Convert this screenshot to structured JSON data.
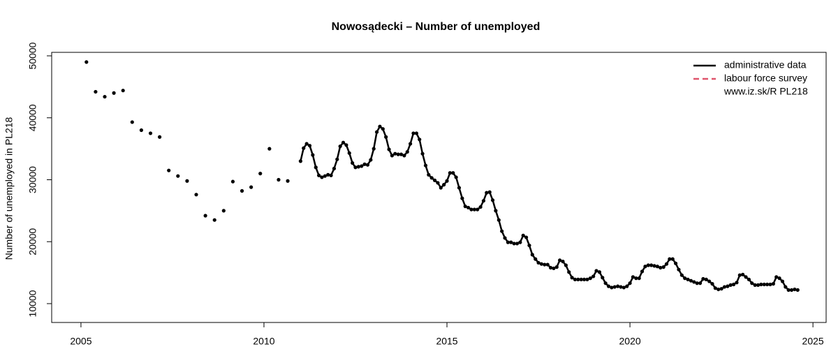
{
  "chart_data": {
    "type": "line",
    "title": "Nowosądecki – Number of unemployed",
    "y_label": "Number of unemployed in PL218",
    "annotation": "www.iz.sk/R PL218",
    "xlim": [
      2004.2,
      2025.36
    ],
    "ylim": [
      6958,
      50563
    ],
    "xticks": [
      2005,
      2010,
      2015,
      2020,
      2025
    ],
    "yticks": [
      10000,
      20000,
      30000,
      40000,
      50000
    ],
    "grid": false,
    "legend": "top-right",
    "series": [
      {
        "name": "administrative data",
        "color": "#000000",
        "dash": false,
        "x": [
          2005.15,
          2005.275,
          2005.4,
          2005.525,
          2005.65,
          2005.775,
          2005.9,
          2006.025,
          2006.15,
          2006.275,
          2006.4,
          2006.525,
          2006.65,
          2006.775,
          2006.9,
          2007.025,
          2007.15,
          2007.275,
          2007.4,
          2007.525,
          2007.65,
          2007.775,
          2007.9,
          2008.025,
          2008.15,
          2008.275,
          2008.4,
          2008.525,
          2008.65,
          2008.775,
          2008.9,
          2009.025,
          2009.15,
          2009.275,
          2009.4,
          2009.525,
          2009.65,
          2009.775,
          2009.9,
          2010.025,
          2010.15,
          2010.275,
          2010.4,
          2010.525,
          2010.65,
          2010.775,
          2011,
          2011.083,
          2011.167,
          2011.25,
          2011.333,
          2011.417,
          2011.5,
          2011.583,
          2011.667,
          2011.75,
          2011.833,
          2011.917,
          2012,
          2012.083,
          2012.167,
          2012.25,
          2012.333,
          2012.417,
          2012.5,
          2012.583,
          2012.667,
          2012.75,
          2012.833,
          2012.917,
          2013,
          2013.083,
          2013.167,
          2013.25,
          2013.333,
          2013.417,
          2013.5,
          2013.583,
          2013.667,
          2013.75,
          2013.833,
          2013.917,
          2014,
          2014.083,
          2014.167,
          2014.25,
          2014.333,
          2014.417,
          2014.5,
          2014.583,
          2014.667,
          2014.75,
          2014.833,
          2014.917,
          2015,
          2015.083,
          2015.167,
          2015.25,
          2015.333,
          2015.417,
          2015.5,
          2015.583,
          2015.667,
          2015.75,
          2015.833,
          2015.917,
          2016,
          2016.083,
          2016.167,
          2016.25,
          2016.333,
          2016.417,
          2016.5,
          2016.583,
          2016.667,
          2016.75,
          2016.833,
          2016.917,
          2017,
          2017.083,
          2017.167,
          2017.25,
          2017.333,
          2017.417,
          2017.5,
          2017.583,
          2017.667,
          2017.75,
          2017.833,
          2017.917,
          2018,
          2018.083,
          2018.167,
          2018.25,
          2018.333,
          2018.417,
          2018.5,
          2018.583,
          2018.667,
          2018.75,
          2018.833,
          2018.917,
          2019,
          2019.083,
          2019.167,
          2019.25,
          2019.333,
          2019.417,
          2019.5,
          2019.583,
          2019.667,
          2019.75,
          2019.833,
          2019.917,
          2020,
          2020.083,
          2020.167,
          2020.25,
          2020.333,
          2020.417,
          2020.5,
          2020.583,
          2020.667,
          2020.75,
          2020.833,
          2020.917,
          2021,
          2021.083,
          2021.167,
          2021.25,
          2021.333,
          2021.417,
          2021.5,
          2021.583,
          2021.667,
          2021.75,
          2021.833,
          2021.917,
          2022,
          2022.083,
          2022.167,
          2022.25,
          2022.333,
          2022.417,
          2022.5,
          2022.583,
          2022.667,
          2022.75,
          2022.833,
          2022.917,
          2023,
          2023.083,
          2023.167,
          2023.25,
          2023.333,
          2023.417,
          2023.5,
          2023.583,
          2023.667,
          2023.75,
          2023.833,
          2023.917,
          2024,
          2024.083,
          2024.167,
          2024.25,
          2024.333,
          2024.417,
          2024.5,
          2024.583
        ],
        "values": [
          49000,
          null,
          44200,
          null,
          43400,
          null,
          44000,
          null,
          44400,
          null,
          39300,
          null,
          38000,
          null,
          37500,
          null,
          36900,
          null,
          31500,
          null,
          30600,
          null,
          29800,
          null,
          27600,
          null,
          24200,
          null,
          23500,
          null,
          25000,
          null,
          29700,
          null,
          28200,
          null,
          28800,
          null,
          31000,
          null,
          35000,
          null,
          30000,
          null,
          29800,
          null,
          33000,
          35100,
          35800,
          35500,
          34000,
          32000,
          30700,
          30400,
          30600,
          30800,
          30700,
          31800,
          33300,
          35400,
          36000,
          35600,
          34300,
          32700,
          32000,
          32100,
          32200,
          32500,
          32400,
          33200,
          35000,
          37700,
          38600,
          38200,
          36900,
          34900,
          33900,
          34200,
          34100,
          34100,
          33900,
          34500,
          35800,
          37500,
          37500,
          36500,
          34200,
          32300,
          30800,
          30300,
          29900,
          29500,
          28700,
          29200,
          29800,
          31100,
          31100,
          30400,
          28700,
          27000,
          25700,
          25500,
          25200,
          25200,
          25200,
          25600,
          26600,
          27900,
          28000,
          26700,
          25000,
          23500,
          21700,
          20600,
          19900,
          19900,
          19700,
          19700,
          19900,
          21000,
          20700,
          19400,
          17900,
          17200,
          16600,
          16400,
          16300,
          16300,
          15800,
          15700,
          15900,
          17000,
          16800,
          16200,
          15100,
          14200,
          13900,
          13900,
          13900,
          13900,
          13900,
          14100,
          14400,
          15300,
          15100,
          14200,
          13300,
          12800,
          12600,
          12700,
          12800,
          12700,
          12600,
          12800,
          13300,
          14300,
          14100,
          14100,
          15200,
          16000,
          16200,
          16200,
          16100,
          16000,
          15800,
          15900,
          16400,
          17200,
          17200,
          16500,
          15500,
          14600,
          14100,
          13900,
          13700,
          13500,
          13300,
          13300,
          14000,
          13900,
          13600,
          13200,
          12500,
          12300,
          12400,
          12700,
          12800,
          13000,
          13100,
          13400,
          14600,
          14700,
          14300,
          13900,
          13300,
          13000,
          13000,
          13100,
          13100,
          13100,
          13100,
          13200,
          14300,
          14100,
          13600,
          12700,
          12200,
          12200,
          12300,
          12200
        ]
      },
      {
        "name": "labour force survey",
        "color": "#df536b",
        "dash": true,
        "x": [],
        "values": []
      }
    ]
  }
}
